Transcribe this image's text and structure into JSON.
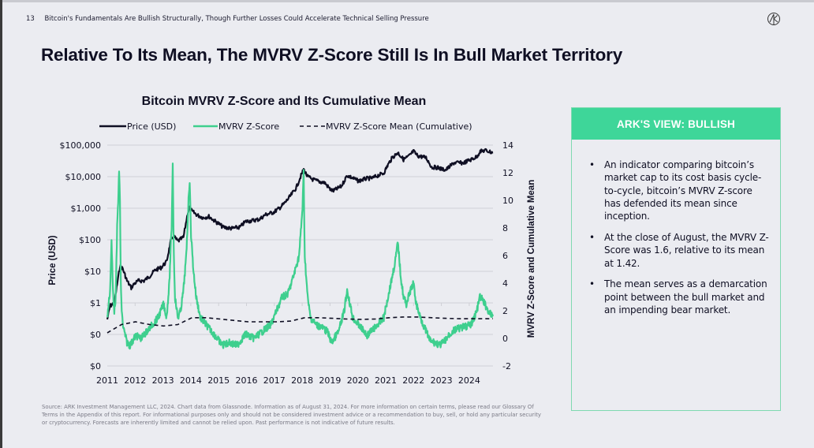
{
  "header": {
    "page_number": "13",
    "section_title": "Bitcoin's Fundamentals Are Bullish Structurally, Though Further Losses Could Accelerate Technical Selling Pressure",
    "logo_icon": "ark-logo-icon"
  },
  "main_title": "Relative To Its Mean, The MVRV Z-Score Still Is In Bull Market Territory",
  "panel": {
    "title": "ARK'S VIEW: BULLISH",
    "bullets": [
      "An indicator comparing bitcoin’s market cap to its cost basis cycle-to-cycle, bitcoin’s MVRV Z-score has defended its mean since inception.",
      "At the close of August, the MVRV Z-Score was 1.6, relative to its mean at 1.42.",
      "The mean serves as a demarcation point between the bull market and an impending bear market."
    ],
    "accent_color": "#3ed699"
  },
  "footnote": "Source: ARK Investment Management LLC, 2024. Chart data from Glassnode. Information as of August 31, 2024. For more information on certain terms, please read our Glossary Of Terms in the Appendix of this report. For informational purposes only and should not be considered investment advice or a recommendation to buy, sell, or hold any particular security or cryptocurrency. Forecasts are inherently limited and cannot be relied upon. Past performance is not indicative of future results.",
  "chart_data": {
    "type": "line",
    "title": "Bitcoin MVRV Z-Score and Its Cumulative Mean",
    "xlabel": "",
    "ylabel_left": "Price (USD)",
    "ylabel_right": "MVRV Z-Score and Cumulative Mean",
    "xlim": [
      2011,
      2024.67
    ],
    "x_ticks": [
      "2011",
      "2012",
      "2013",
      "2014",
      "2015",
      "2016",
      "2017",
      "2018",
      "2019",
      "2020",
      "2021",
      "2022",
      "2023",
      "2024"
    ],
    "y_left_scale": "log",
    "y_left_lim": [
      0.01,
      100000
    ],
    "y_left_ticks": [
      "$100,000",
      "$10,000",
      "$1,000",
      "$100",
      "$10",
      "$1",
      "$0",
      "$0"
    ],
    "y_left_tick_values": [
      100000,
      10000,
      1000,
      100,
      10,
      1,
      0.1,
      0.01
    ],
    "y_right_lim": [
      -2,
      14
    ],
    "y_right_ticks": [
      "14",
      "12",
      "10",
      "8",
      "6",
      "4",
      "2",
      "0",
      "-2"
    ],
    "y_right_tick_values": [
      14,
      12,
      10,
      8,
      6,
      4,
      2,
      0,
      -2
    ],
    "grid": true,
    "legend_position": "top",
    "colors": {
      "price": "#0f0f23",
      "zscore": "#3ecf8e",
      "mean": "#0f0f23"
    },
    "series": [
      {
        "name": "Price (USD)",
        "axis": "left",
        "style": "solid",
        "x": [
          2011.0,
          2011.1,
          2011.25,
          2011.45,
          2011.55,
          2011.7,
          2011.85,
          2011.95,
          2012.1,
          2012.3,
          2012.5,
          2012.7,
          2012.9,
          2013.1,
          2013.25,
          2013.35,
          2013.5,
          2013.7,
          2013.85,
          2013.92,
          2014.0,
          2014.2,
          2014.4,
          2014.6,
          2014.8,
          2015.0,
          2015.1,
          2015.4,
          2015.7,
          2015.9,
          2016.1,
          2016.4,
          2016.6,
          2016.9,
          2017.1,
          2017.3,
          2017.5,
          2017.7,
          2017.85,
          2017.96,
          2018.1,
          2018.3,
          2018.5,
          2018.7,
          2018.9,
          2019.0,
          2019.3,
          2019.5,
          2019.7,
          2019.9,
          2020.2,
          2020.4,
          2020.6,
          2020.8,
          2020.95,
          2021.1,
          2021.3,
          2021.5,
          2021.7,
          2021.85,
          2022.0,
          2022.3,
          2022.5,
          2022.7,
          2022.9,
          2023.0,
          2023.3,
          2023.6,
          2023.9,
          2024.1,
          2024.2,
          2024.4,
          2024.6,
          2024.67
        ],
        "values": [
          0.3,
          0.8,
          1.0,
          15,
          12,
          5,
          3,
          4,
          5,
          5,
          7,
          11,
          13,
          20,
          90,
          130,
          90,
          120,
          700,
          1100,
          800,
          600,
          500,
          550,
          400,
          300,
          250,
          230,
          250,
          380,
          400,
          450,
          620,
          750,
          1000,
          1500,
          2500,
          4500,
          10000,
          17000,
          10000,
          8000,
          7000,
          6500,
          4000,
          3500,
          5000,
          11000,
          9000,
          7300,
          8800,
          9000,
          11000,
          13000,
          24000,
          40000,
          58000,
          35000,
          45000,
          64000,
          46000,
          40000,
          20000,
          19500,
          17000,
          16500,
          28000,
          27000,
          35000,
          43000,
          62000,
          68000,
          60000,
          59000
        ]
      },
      {
        "name": "MVRV Z-Score",
        "axis": "right",
        "style": "solid",
        "x": [
          2011.0,
          2011.05,
          2011.1,
          2011.15,
          2011.2,
          2011.25,
          2011.3,
          2011.35,
          2011.42,
          2011.45,
          2011.48,
          2011.5,
          2011.55,
          2011.6,
          2011.7,
          2011.8,
          2011.9,
          2012.0,
          2012.2,
          2012.4,
          2012.6,
          2012.8,
          2013.0,
          2013.1,
          2013.2,
          2013.28,
          2013.32,
          2013.36,
          2013.4,
          2013.5,
          2013.6,
          2013.7,
          2013.8,
          2013.88,
          2013.92,
          2013.97,
          2014.05,
          2014.15,
          2014.3,
          2014.5,
          2014.7,
          2014.9,
          2015.0,
          2015.1,
          2015.3,
          2015.6,
          2015.9,
          2016.2,
          2016.5,
          2016.8,
          2017.0,
          2017.2,
          2017.4,
          2017.6,
          2017.8,
          2017.92,
          2017.96,
          2018.0,
          2018.1,
          2018.2,
          2018.4,
          2018.6,
          2018.8,
          2018.95,
          2019.2,
          2019.4,
          2019.5,
          2019.7,
          2019.9,
          2020.1,
          2020.2,
          2020.5,
          2020.8,
          2020.95,
          2021.1,
          2021.2,
          2021.3,
          2021.4,
          2021.5,
          2021.6,
          2021.75,
          2021.85,
          2021.95,
          2022.1,
          2022.3,
          2022.45,
          2022.6,
          2022.8,
          2022.95,
          2023.1,
          2023.3,
          2023.6,
          2023.9,
          2024.1,
          2024.2,
          2024.3,
          2024.45,
          2024.55,
          2024.67
        ],
        "values": [
          1.5,
          2.5,
          3.5,
          7.0,
          3.5,
          2.0,
          3.0,
          8.0,
          12.0,
          10.0,
          4.0,
          2.5,
          1.0,
          0.5,
          -0.3,
          -0.5,
          -0.2,
          0.2,
          0.0,
          0.5,
          1.0,
          1.5,
          2.5,
          1.5,
          4.0,
          8.0,
          12.6,
          6.0,
          3.0,
          1.5,
          2.0,
          3.5,
          6.0,
          10.0,
          11.5,
          7.5,
          5.0,
          3.0,
          1.5,
          1.0,
          0.5,
          0.0,
          -0.3,
          -0.5,
          -0.3,
          -0.5,
          0.3,
          0.0,
          0.5,
          1.0,
          2.0,
          3.0,
          3.2,
          4.5,
          6.0,
          9.5,
          12.0,
          6.0,
          3.0,
          1.5,
          1.0,
          0.8,
          0.5,
          -0.3,
          0.5,
          2.0,
          3.5,
          1.5,
          1.0,
          0.5,
          0.2,
          0.8,
          1.5,
          3.0,
          4.5,
          5.5,
          7.0,
          4.5,
          3.0,
          2.5,
          3.5,
          4.0,
          2.5,
          1.5,
          0.5,
          -0.2,
          -0.3,
          -0.5,
          -0.2,
          0.2,
          0.6,
          0.8,
          1.0,
          2.0,
          3.0,
          2.8,
          2.2,
          1.8,
          1.6
        ]
      },
      {
        "name": "MVRV Z-Score Mean (Cumulative)",
        "axis": "right",
        "style": "dashed",
        "x": [
          2011.0,
          2011.5,
          2012.0,
          2012.5,
          2013.0,
          2013.5,
          2014.0,
          2014.5,
          2015.0,
          2015.5,
          2016.0,
          2016.5,
          2017.0,
          2017.5,
          2018.0,
          2018.5,
          2019.0,
          2019.5,
          2020.0,
          2020.5,
          2021.0,
          2021.5,
          2022.0,
          2022.5,
          2023.0,
          2023.5,
          2024.0,
          2024.67
        ],
        "values": [
          0.4,
          1.0,
          1.2,
          1.0,
          0.9,
          1.0,
          1.5,
          1.5,
          1.4,
          1.3,
          1.2,
          1.2,
          1.2,
          1.25,
          1.5,
          1.5,
          1.45,
          1.4,
          1.38,
          1.4,
          1.5,
          1.55,
          1.55,
          1.5,
          1.45,
          1.42,
          1.42,
          1.42
        ]
      }
    ]
  }
}
